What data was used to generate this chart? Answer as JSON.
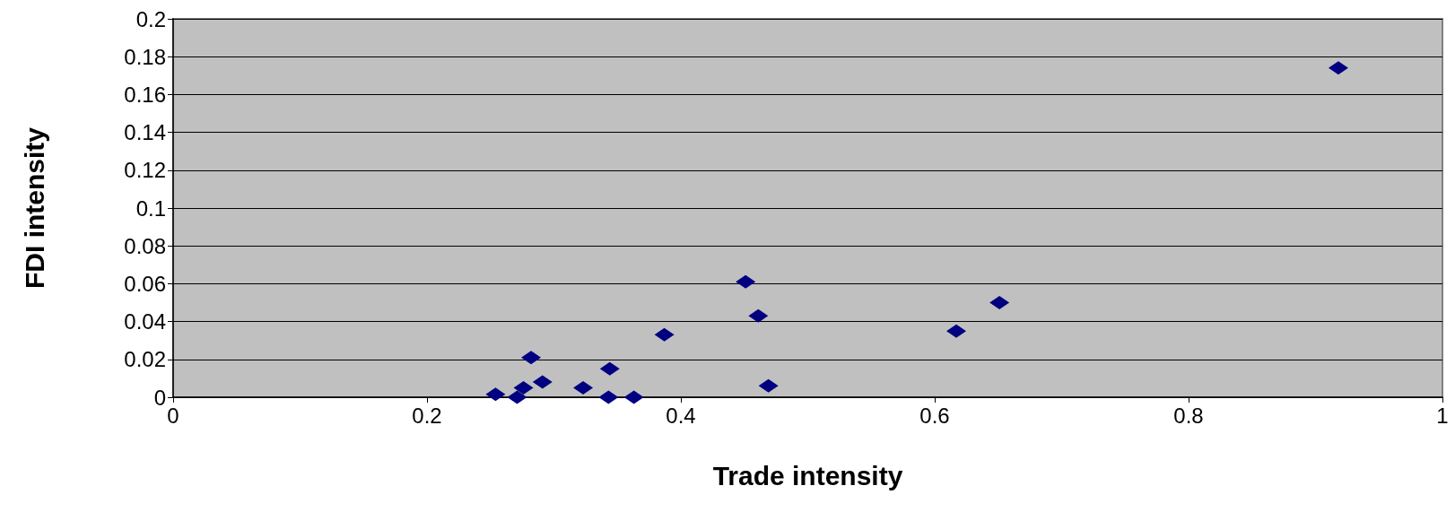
{
  "chart_data": {
    "type": "scatter",
    "xlabel": "Trade intensity",
    "ylabel": "FDI intensity",
    "x": [
      0.254,
      0.271,
      0.276,
      0.282,
      0.291,
      0.323,
      0.343,
      0.344,
      0.363,
      0.387,
      0.451,
      0.461,
      0.469,
      0.617,
      0.651,
      0.918
    ],
    "series": [
      {
        "color": "#000080",
        "values": [
          0.0015,
          0,
          0.005,
          0.021,
          0.008,
          0.005,
          0,
          0.015,
          0,
          0.033,
          0.061,
          0.043,
          0.006,
          0.035,
          0.05,
          0.174
        ]
      }
    ],
    "xlim": [
      0,
      1
    ],
    "xticks": [
      0,
      0.2,
      0.4,
      0.6,
      0.8,
      1
    ],
    "ylim": [
      0,
      0.2
    ],
    "yticks": [
      0,
      0.02,
      0.04,
      0.06,
      0.08,
      0.1,
      0.12,
      0.14,
      0.16,
      0.18,
      0.2
    ],
    "grid": "y",
    "marker": "diamond"
  }
}
